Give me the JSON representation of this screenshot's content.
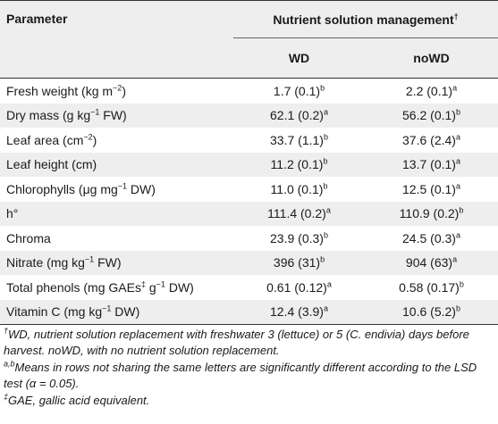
{
  "table": {
    "header": {
      "parameter": "Parameter",
      "group": "Nutrient solution management",
      "group_sup": "†",
      "col_wd": "WD",
      "col_nowd": "noWD"
    },
    "rows": [
      {
        "param": "Fresh weight (kg m",
        "param_sup": "−2",
        "param_tail": ")",
        "wd": "1.7 (0.1)",
        "wd_sup": "b",
        "nowd": "2.2 (0.1)",
        "nowd_sup": "a"
      },
      {
        "param": "Dry mass (g kg",
        "param_sup": "−1",
        "param_tail": " FW)",
        "wd": "62.1 (0.2)",
        "wd_sup": "a",
        "nowd": "56.2 (0.1)",
        "nowd_sup": "b"
      },
      {
        "param": "Leaf area (cm",
        "param_sup": "−2",
        "param_tail": ")",
        "wd": "33.7 (1.1)",
        "wd_sup": "b",
        "nowd": "37.6 (2.4)",
        "nowd_sup": "a"
      },
      {
        "param": "Leaf height (cm)",
        "param_sup": "",
        "param_tail": "",
        "wd": "11.2 (0.1)",
        "wd_sup": "b",
        "nowd": "13.7 (0.1)",
        "nowd_sup": "a"
      },
      {
        "param": "Chlorophylls (μg mg",
        "param_sup": "−1",
        "param_tail": " DW)",
        "wd": "11.0 (0.1)",
        "wd_sup": "b",
        "nowd": "12.5 (0.1)",
        "nowd_sup": "a"
      },
      {
        "param": "h°",
        "param_sup": "",
        "param_tail": "",
        "wd": "111.4 (0.2)",
        "wd_sup": "a",
        "nowd": "110.9 (0.2)",
        "nowd_sup": "b"
      },
      {
        "param": "Chroma",
        "param_sup": "",
        "param_tail": "",
        "wd": "23.9 (0.3)",
        "wd_sup": "b",
        "nowd": "24.5 (0.3)",
        "nowd_sup": "a"
      },
      {
        "param": "Nitrate (mg kg",
        "param_sup": "−1",
        "param_tail": " FW)",
        "wd": "396 (31)",
        "wd_sup": "b",
        "nowd": "904 (63)",
        "nowd_sup": "a"
      },
      {
        "param": "Total phenols (mg GAEs",
        "param_sup": "‡",
        "param_tail": " g",
        "param_sup2": "−1",
        "param_tail2": " DW)",
        "wd": "0.61 (0.12)",
        "wd_sup": "a",
        "nowd": "0.58 (0.17)",
        "nowd_sup": "b"
      },
      {
        "param": "Vitamin C (mg kg",
        "param_sup": "−1",
        "param_tail": " DW)",
        "wd": "12.4 (3.9)",
        "wd_sup": "a",
        "nowd": "10.6 (5.2)",
        "nowd_sup": "b"
      }
    ]
  },
  "footnotes": {
    "f1_mark": "†",
    "f1_text": "WD, nutrient solution replacement with freshwater 3 (lettuce) or 5 (C. endivia) days before harvest. noWD, with no nutrient solution replacement.",
    "f2_mark": "a,b",
    "f2_text": "Means in rows not sharing the same letters are significantly different according to the LSD test (α = 0.05).",
    "f3_mark": "‡",
    "f3_text": "GAE, gallic acid equivalent."
  }
}
